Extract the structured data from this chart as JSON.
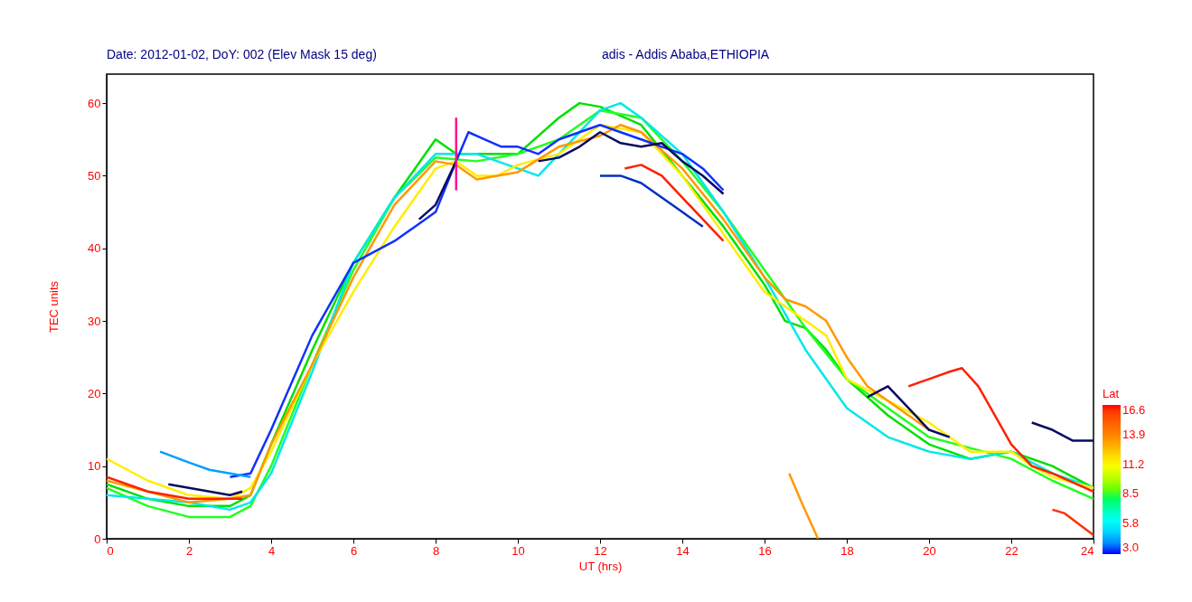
{
  "chart_data": {
    "type": "line",
    "title": "Date: 2012-01-02, DoY: 002  (Elev Mask 15 deg)",
    "subtitle": "adis - Addis Ababa,ETHIOPIA",
    "xlabel": "UT (hrs)",
    "ylabel": "TEC units",
    "clabel": "Lat",
    "clim": [
      3.0,
      16.6
    ],
    "cticks": [
      {
        "value": 3.0,
        "label": "3.0"
      },
      5.8,
      8.5,
      11.2,
      13.9,
      16.6
    ],
    "xlim": [
      0,
      24
    ],
    "xticks": [
      0,
      2,
      4,
      6,
      8,
      10,
      12,
      14,
      16,
      18,
      20,
      22,
      24
    ],
    "ylim": [
      0,
      64
    ],
    "yticks": [
      0,
      10,
      20,
      30,
      40,
      50,
      60
    ],
    "grid": false,
    "series": [
      {
        "color": "#00e000",
        "x": [
          0,
          1,
          2,
          3,
          3.5,
          4,
          5,
          6,
          7,
          7.5,
          8,
          8.5,
          9,
          10,
          11,
          11.5,
          12,
          13,
          14,
          15,
          16,
          16.5,
          17,
          17.5,
          18,
          19,
          20,
          21,
          22,
          23,
          24
        ],
        "values": [
          7.5,
          5.5,
          4.5,
          4.5,
          6,
          13,
          26,
          38,
          47,
          51,
          55,
          53,
          53,
          53,
          58,
          60,
          59.5,
          57,
          50,
          43,
          35,
          30,
          29,
          26,
          22,
          17,
          13,
          11,
          12,
          10,
          7
        ]
      },
      {
        "color": "#20ff20",
        "x": [
          0,
          1,
          2,
          3,
          3.5,
          4,
          5,
          6,
          7,
          8,
          9,
          10,
          11,
          12,
          13,
          14,
          15,
          16,
          17,
          18,
          19,
          20,
          21,
          22,
          23,
          24
        ],
        "values": [
          7,
          4.5,
          3,
          3,
          4.5,
          10,
          24,
          37,
          47,
          52.5,
          52,
          53,
          55,
          59,
          58,
          52,
          45,
          37,
          29,
          22,
          18,
          14,
          12.5,
          11,
          8,
          5.5
        ]
      },
      {
        "color": "#00e8e8",
        "x": [
          0,
          1,
          2,
          3,
          3.5,
          4,
          5,
          6,
          7,
          8,
          9,
          10,
          10.5,
          11,
          12,
          12.5,
          13,
          14,
          15,
          16,
          17,
          18,
          19,
          20,
          21,
          22,
          23,
          24
        ],
        "values": [
          6,
          5.5,
          5,
          4,
          5,
          9,
          23,
          38,
          47,
          53,
          53,
          51,
          50,
          53,
          59,
          60,
          58,
          53,
          45,
          36,
          26,
          18,
          14,
          12,
          11,
          12,
          9,
          7
        ]
      },
      {
        "color": "#ffee00",
        "x": [
          0,
          1,
          2,
          3,
          3.5,
          4,
          5,
          6,
          7,
          8,
          8.5,
          9,
          9.5,
          10,
          11,
          12,
          13,
          14,
          15,
          16,
          17,
          17.5,
          18,
          19,
          20,
          21,
          22,
          22.5,
          23,
          24
        ],
        "values": [
          11,
          8,
          6,
          5.5,
          7,
          12,
          24,
          34,
          43,
          51,
          52,
          50,
          50,
          51.5,
          53,
          57,
          56,
          50,
          42,
          34,
          30,
          28,
          22,
          19,
          16,
          12,
          12,
          10,
          8.5,
          7
        ]
      },
      {
        "color": "#ff9900",
        "x": [
          0,
          1,
          2,
          3,
          3.5,
          4,
          5,
          6,
          7,
          8,
          8.5,
          9,
          10,
          11,
          12,
          12.5,
          13,
          14,
          15,
          16,
          16.5,
          17,
          17.5,
          18,
          18.5,
          19,
          20
        ],
        "values": [
          8,
          6.5,
          5,
          5.5,
          6,
          13,
          24,
          36,
          46,
          52,
          51.5,
          49.5,
          50.5,
          54,
          55.5,
          57,
          56,
          51,
          44,
          36,
          33,
          32,
          30,
          25,
          21,
          19,
          15
        ]
      },
      {
        "color": "#1030ff",
        "x": [
          3,
          3.5,
          4,
          5,
          6,
          7,
          7.5,
          8,
          8.5,
          8.8,
          9.2,
          9.6,
          10,
          10.5,
          11,
          11.5,
          12,
          12.5,
          13,
          13.5,
          14,
          14.5,
          15
        ],
        "values": [
          8.5,
          9,
          15,
          28,
          38,
          41,
          43,
          45,
          52,
          56,
          55,
          54,
          54,
          53,
          55,
          56,
          57,
          56,
          55,
          54,
          53,
          51,
          48
        ]
      },
      {
        "color": "#0a0a60",
        "x": [
          1.5,
          2,
          2.5,
          3,
          3.3
        ],
        "values": [
          7.5,
          7,
          6.5,
          6,
          6.5
        ]
      },
      {
        "color": "#0a0a60",
        "x": [
          10.5,
          11,
          11.5,
          12,
          12.5,
          13,
          13.5,
          14,
          14.5,
          15
        ],
        "values": [
          52,
          52.5,
          54,
          56,
          54.5,
          54,
          54.5,
          52,
          50,
          47.5
        ]
      },
      {
        "color": "#0a0a60",
        "x": [
          7.6,
          8,
          8.5
        ],
        "values": [
          44,
          46,
          52
        ]
      },
      {
        "color": "#0a0a60",
        "x": [
          18.5,
          19,
          19.5,
          20,
          20.5
        ],
        "values": [
          19.5,
          21,
          18,
          15,
          14
        ]
      },
      {
        "color": "#0a0a60",
        "x": [
          22.5,
          23,
          23.5,
          24
        ],
        "values": [
          16,
          15,
          13.5,
          13.5
        ]
      },
      {
        "color": "#00a0ff",
        "x": [
          1.3,
          2,
          2.5,
          3,
          3.5
        ],
        "values": [
          12,
          10.5,
          9.5,
          9,
          8.5
        ]
      },
      {
        "color": "#ff2000",
        "x": [
          0,
          1,
          2,
          3,
          3.3
        ],
        "values": [
          8.5,
          6.5,
          5.5,
          5.5,
          5.5
        ]
      },
      {
        "color": "#ff2000",
        "x": [
          12.6,
          13,
          13.5,
          14,
          14.5,
          15
        ],
        "values": [
          51,
          51.5,
          50,
          47,
          44,
          41
        ]
      },
      {
        "color": "#ff2000",
        "x": [
          19.5,
          20,
          20.5,
          20.8,
          21.2,
          21.6,
          22,
          22.5,
          23,
          24
        ],
        "values": [
          21,
          22,
          23,
          23.5,
          21,
          17,
          13,
          10,
          9,
          6.5
        ]
      },
      {
        "color": "#0030c0",
        "x": [
          12,
          12.5,
          13,
          13.5,
          14,
          14.5
        ],
        "values": [
          50,
          50,
          49,
          47,
          45,
          43
        ]
      },
      {
        "color": "#ff1090",
        "x": [
          8.5,
          8.5
        ],
        "values": [
          48,
          58
        ]
      },
      {
        "color": "#ff9900",
        "x": [
          16.6,
          16.9,
          17.3
        ],
        "values": [
          9,
          5,
          0
        ]
      },
      {
        "color": "#ff3000",
        "x": [
          23,
          23.3,
          24
        ],
        "values": [
          4,
          3.5,
          0.5
        ]
      }
    ]
  }
}
